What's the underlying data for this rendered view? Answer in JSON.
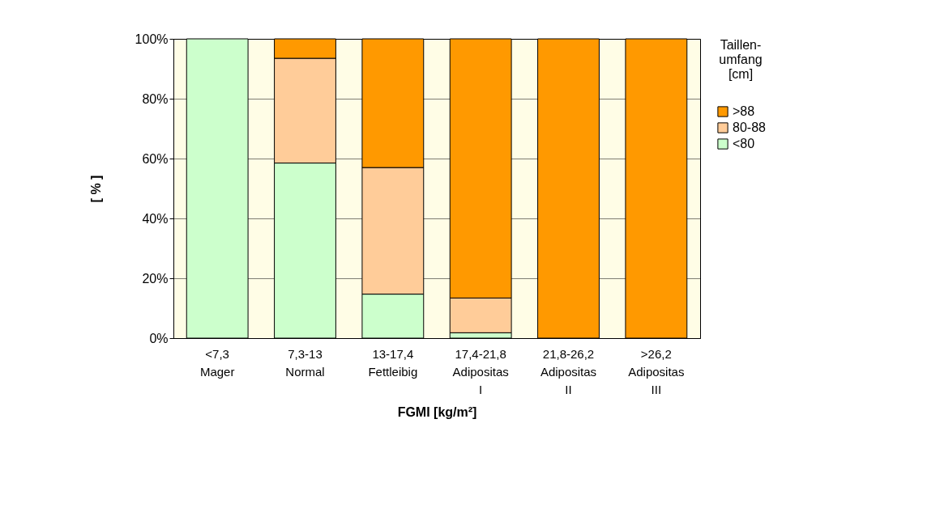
{
  "chart_data": {
    "type": "bar",
    "stacked": true,
    "xlabel": "FGMI [kg/m²]",
    "ylabel": "[ % ]",
    "legend_title": "Taillen-\numfang\n[cm]",
    "legend": "right",
    "categories": [
      "<7,3\nMager",
      "7,3-13\nNormal",
      "13-17,4\nFettleibig",
      "17,4-21,8\nAdipositas\nI",
      "21,8-26,2\nAdipositas\nII",
      ">26,2\nAdipositas\nIII"
    ],
    "series": [
      {
        "name": "<80",
        "color": "#ccffcc",
        "values": [
          100,
          58.5,
          14.7,
          1.8,
          0,
          0
        ]
      },
      {
        "name": "80-88",
        "color": "#ffcc99",
        "values": [
          0,
          35,
          42.3,
          11.6,
          0,
          0
        ]
      },
      {
        "name": ">88",
        "color": "#ff9900",
        "values": [
          0,
          6.5,
          43,
          86.6,
          100,
          100
        ]
      }
    ],
    "ylim": [
      0,
      100
    ],
    "yticks": [
      {
        "value": 0,
        "label": "0%"
      },
      {
        "value": 20,
        "label": "20%"
      },
      {
        "value": 40,
        "label": "40%"
      },
      {
        "value": 60,
        "label": "60%"
      },
      {
        "value": 80,
        "label": "80%"
      },
      {
        "value": 100,
        "label": "100%"
      }
    ],
    "grid": "y"
  }
}
